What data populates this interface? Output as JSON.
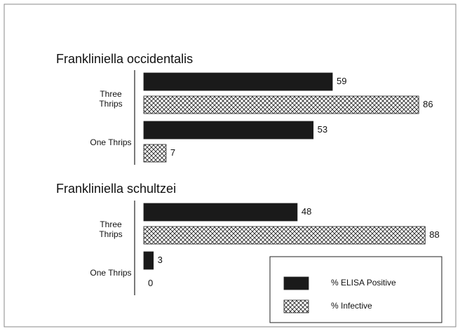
{
  "chart_data": {
    "type": "bar",
    "orientation": "horizontal",
    "series": [
      {
        "name": "% ELISA Positive",
        "color": "#1a1a1a",
        "pattern": "solid"
      },
      {
        "name": "% Infective",
        "color": "#1a1a1a",
        "pattern": "crosshatch"
      }
    ],
    "panels": [
      {
        "title": "Frankliniella occidentalis",
        "categories": [
          "Three Thrips",
          "One Thrips"
        ],
        "values": [
          [
            59,
            53
          ],
          [
            86,
            7
          ]
        ]
      },
      {
        "title": "Frankliniella schultzei",
        "categories": [
          "Three Thrips",
          "One Thrips"
        ],
        "values": [
          [
            48,
            3
          ],
          [
            88,
            0
          ]
        ]
      }
    ]
  }
}
